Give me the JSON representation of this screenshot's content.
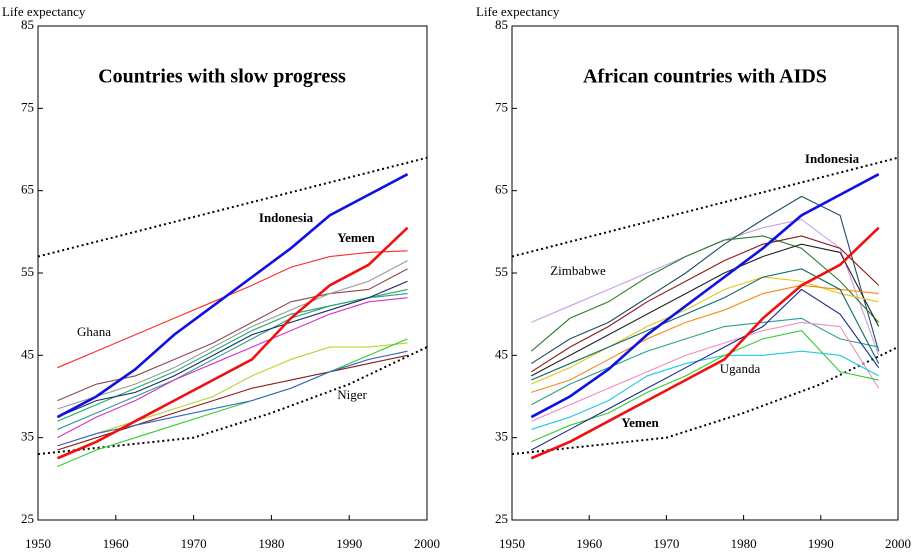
{
  "chart_data": [
    {
      "type": "line",
      "title": "Countries with slow progress",
      "ylabel": "Life expectancy",
      "x": [
        1952.5,
        1957.5,
        1962.5,
        1967.5,
        1972.5,
        1977.5,
        1982.5,
        1987.5,
        1992.5,
        1997.5
      ],
      "xlim": [
        1950,
        2000
      ],
      "ylim": [
        25,
        85
      ],
      "xticks": [
        1950,
        1960,
        1970,
        1980,
        1990,
        2000
      ],
      "yticks": [
        25,
        35,
        45,
        55,
        65,
        75,
        85
      ],
      "series": [
        {
          "color": "#8b4a4a",
          "values": [
            39.5,
            41.5,
            42.5,
            44.5,
            46.5,
            49,
            51.5,
            52.5,
            53,
            55.5
          ]
        },
        {
          "color": "#999999",
          "values": [
            38.5,
            40,
            41.5,
            43.5,
            46,
            48.5,
            50.5,
            52.5,
            54,
            56.5
          ]
        },
        {
          "color": "#2a9d8f",
          "values": [
            36,
            38,
            40,
            42,
            44.5,
            47,
            49.5,
            51,
            52,
            52.5
          ]
        },
        {
          "color": "#d633c9",
          "values": [
            35,
            37.5,
            39.5,
            42,
            44,
            46,
            48,
            50,
            51.5,
            52
          ]
        },
        {
          "color": "#b5d630",
          "values": [
            34,
            35.5,
            37,
            38.5,
            40,
            42.5,
            44.5,
            46,
            46,
            46.5
          ]
        },
        {
          "color": "#8b1a1a",
          "values": [
            33.5,
            35,
            36.5,
            38,
            39.5,
            41,
            42,
            43,
            44,
            45
          ]
        },
        {
          "color": "#33cc33",
          "values": [
            31.5,
            33.5,
            35,
            36.5,
            38,
            39.5,
            41,
            43,
            45,
            47
          ]
        },
        {
          "color": "#3366cc",
          "values": [
            34,
            35.5,
            36.5,
            37.5,
            38.5,
            39.5,
            41,
            43,
            44.5,
            45.5
          ]
        },
        {
          "color": "#22aa66",
          "values": [
            37,
            39,
            41,
            43,
            45.5,
            48,
            50,
            51,
            52,
            53
          ]
        },
        {
          "color": "#1a2a6b",
          "values": [
            37.5,
            39.5,
            40.5,
            42.5,
            45,
            47.5,
            49,
            50.5,
            52,
            54
          ]
        },
        {
          "color": "#ff2a2a",
          "values": [
            43.5,
            45.5,
            47.5,
            49.5,
            51.5,
            53.5,
            55.7,
            57,
            57.5,
            57.7
          ]
        },
        {
          "color": "#1010e0",
          "highlight": true,
          "values": [
            37.5,
            40,
            43.3,
            47.5,
            51,
            54.5,
            58,
            62,
            64.5,
            67
          ]
        },
        {
          "color": "#ee1111",
          "highlight": true,
          "values": [
            32.5,
            34.5,
            37,
            39.5,
            42,
            44.5,
            49.5,
            53.5,
            56,
            60.5
          ]
        }
      ],
      "bounds": [
        {
          "x": [
            1950,
            2000
          ],
          "values": [
            57,
            69
          ]
        },
        {
          "x": [
            1950,
            1960,
            1970,
            1980,
            1990,
            2000
          ],
          "values": [
            33,
            34,
            35,
            38,
            41.5,
            46
          ]
        }
      ],
      "annotations": [
        {
          "text": "Indonesia",
          "color": "#1010e0",
          "bold": true
        },
        {
          "text": "Yemen",
          "color": "#ee1111",
          "bold": true
        },
        {
          "text": "Ghana",
          "color": "#000000"
        },
        {
          "text": "Niger",
          "color": "#000000"
        }
      ]
    },
    {
      "type": "line",
      "title": "African countries with AIDS",
      "ylabel": "Life expectancy",
      "x": [
        1952.5,
        1957.5,
        1962.5,
        1967.5,
        1972.5,
        1977.5,
        1982.5,
        1987.5,
        1992.5,
        1997.5
      ],
      "xlim": [
        1950,
        2000
      ],
      "ylim": [
        25,
        85
      ],
      "xticks": [
        1950,
        1960,
        1970,
        1980,
        1990,
        2000
      ],
      "yticks": [
        25,
        35,
        45,
        55,
        65,
        75,
        85
      ],
      "series": [
        {
          "color": "#c9a0e6",
          "values": [
            49,
            51,
            53,
            55,
            57,
            59,
            60.5,
            61.5,
            58,
            45
          ]
        },
        {
          "color": "#1f4e5f",
          "values": [
            44,
            47,
            49,
            52,
            55,
            58.5,
            61.5,
            64.3,
            62,
            45.5
          ]
        },
        {
          "color": "#2e7d32",
          "values": [
            45.5,
            49.5,
            51.5,
            54.5,
            57,
            59,
            59.5,
            58,
            54,
            49
          ]
        },
        {
          "color": "#8b1a1a",
          "values": [
            43,
            46,
            48.5,
            51.5,
            54,
            56.5,
            58.5,
            59.5,
            58,
            53.5
          ]
        },
        {
          "color": "#222222",
          "values": [
            42.5,
            45,
            47.5,
            50,
            52.5,
            55,
            57,
            58.5,
            57.5,
            48.5
          ]
        },
        {
          "color": "#e6c619",
          "values": [
            41.5,
            43.5,
            46,
            48.5,
            50.5,
            53,
            54.5,
            54,
            52.5,
            51.5
          ]
        },
        {
          "color": "#f08c1a",
          "values": [
            40.5,
            42,
            44.5,
            47,
            49,
            50.5,
            52.5,
            53.5,
            53,
            52.5
          ]
        },
        {
          "color": "#2a9d8f",
          "values": [
            39,
            41.5,
            43.5,
            45.5,
            47,
            48.5,
            49,
            49.5,
            47,
            46
          ]
        },
        {
          "color": "#f08cc0",
          "values": [
            37,
            39,
            41,
            43,
            45,
            46.5,
            48,
            49,
            48.5,
            41
          ]
        },
        {
          "color": "#22c8e0",
          "values": [
            36,
            37.5,
            39.5,
            42.5,
            44,
            45,
            45,
            45.5,
            45,
            42.5
          ]
        },
        {
          "color": "#33cc33",
          "values": [
            34.5,
            36.5,
            38,
            40.5,
            42.5,
            45,
            47,
            48,
            43,
            42
          ]
        },
        {
          "color": "#1a2a8b",
          "values": [
            33.5,
            36,
            38.5,
            41,
            43.5,
            46,
            48.5,
            53,
            50,
            43.5
          ]
        },
        {
          "color": "#0f6b6b",
          "values": [
            42,
            44,
            46,
            48,
            50,
            52,
            54.5,
            55.5,
            53,
            44
          ]
        },
        {
          "color": "#1010e0",
          "highlight": true,
          "values": [
            37.5,
            40,
            43.3,
            47.5,
            51,
            54.5,
            58,
            62,
            64.5,
            67
          ]
        },
        {
          "color": "#ee1111",
          "highlight": true,
          "values": [
            32.5,
            34.5,
            37,
            39.5,
            42,
            44.5,
            49.5,
            53.5,
            56,
            60.5
          ]
        }
      ],
      "bounds": [
        {
          "x": [
            1950,
            2000
          ],
          "values": [
            57,
            69
          ]
        },
        {
          "x": [
            1950,
            1960,
            1970,
            1980,
            1990,
            2000
          ],
          "values": [
            33,
            34,
            35,
            38,
            41.5,
            46
          ]
        }
      ],
      "annotations": [
        {
          "text": "Indonesia",
          "color": "#1010e0",
          "bold": true
        },
        {
          "text": "Yemen",
          "color": "#ee1111",
          "bold": true
        },
        {
          "text": "Zimbabwe",
          "color": "#000000"
        },
        {
          "text": "Uganda",
          "color": "#000000"
        }
      ]
    }
  ]
}
